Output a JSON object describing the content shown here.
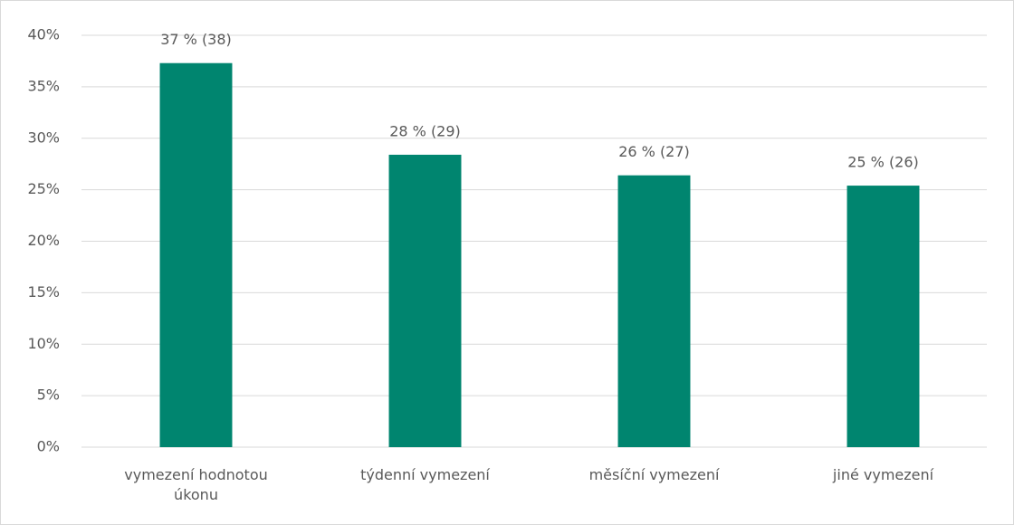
{
  "chart_data": {
    "type": "bar",
    "categories": [
      "vymezení hodnotou úkonu",
      "týdenní vymezení",
      "měsíční vymezení",
      "jiné vymezení"
    ],
    "values": [
      37.3,
      28.4,
      26.4,
      25.4
    ],
    "value_labels": [
      "37 % (38)",
      "28 % (29)",
      "26 % (27)",
      "25 % (26)"
    ],
    "color": "#00856f",
    "ylim": [
      0,
      40
    ],
    "yticks": [
      {
        "value": 0,
        "label": "0%"
      },
      {
        "value": 5,
        "label": "5%"
      },
      {
        "value": 10,
        "label": "10%"
      },
      {
        "value": 15,
        "label": "15%"
      },
      {
        "value": 20,
        "label": "20%"
      },
      {
        "value": 25,
        "label": "25%"
      },
      {
        "value": 30,
        "label": "30%"
      },
      {
        "value": 35,
        "label": "35%"
      },
      {
        "value": 40,
        "label": "40%"
      }
    ],
    "grid": true
  }
}
